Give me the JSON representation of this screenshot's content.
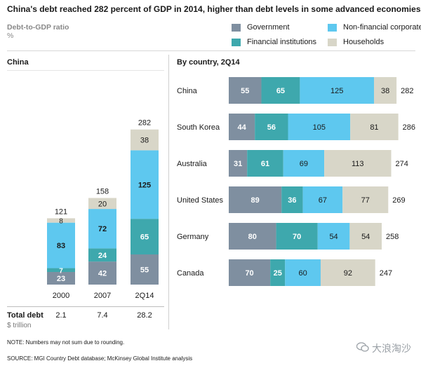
{
  "title": "China's debt reached 282 percent of GDP in 2014, higher than debt levels in some advanced economies",
  "ratio_label": "Debt-to-GDP ratio",
  "ratio_unit": "%",
  "colors": {
    "government": "#7f8fa0",
    "financial": "#3ea8ad",
    "nonfinancial": "#5ec8ef",
    "households": "#d8d6c8"
  },
  "legend": [
    {
      "key": "government",
      "label": "Government"
    },
    {
      "key": "nonfinancial",
      "label": "Non-financial corporate"
    },
    {
      "key": "financial",
      "label": "Financial institutions"
    },
    {
      "key": "households",
      "label": "Households"
    }
  ],
  "chart_data": [
    {
      "type": "bar",
      "stacked": true,
      "orientation": "vertical",
      "title": "China",
      "categories": [
        "2000",
        "2007",
        "2Q14"
      ],
      "series": [
        {
          "key": "government",
          "name": "Government",
          "values": [
            23,
            42,
            55
          ]
        },
        {
          "key": "financial",
          "name": "Financial institutions",
          "values": [
            7,
            24,
            65
          ]
        },
        {
          "key": "nonfinancial",
          "name": "Non-financial corporate",
          "values": [
            83,
            72,
            125
          ]
        },
        {
          "key": "households",
          "name": "Households",
          "values": [
            8,
            20,
            38
          ]
        }
      ],
      "totals": [
        121,
        158,
        282
      ],
      "total_debt_label": "Total debt",
      "total_debt_unit": "$ trillion",
      "total_debt": [
        "2.1",
        "7.4",
        "28.2"
      ]
    },
    {
      "type": "bar",
      "stacked": true,
      "orientation": "horizontal",
      "title": "By country, 2Q14",
      "categories": [
        "China",
        "South Korea",
        "Australia",
        "United States",
        "Germany",
        "Canada"
      ],
      "series": [
        {
          "key": "government",
          "name": "Government",
          "values": [
            55,
            44,
            31,
            89,
            80,
            70
          ]
        },
        {
          "key": "financial",
          "name": "Financial institutions",
          "values": [
            65,
            56,
            61,
            36,
            70,
            25
          ]
        },
        {
          "key": "nonfinancial",
          "name": "Non-financial corporate",
          "values": [
            125,
            105,
            69,
            67,
            54,
            60
          ]
        },
        {
          "key": "households",
          "name": "Households",
          "values": [
            38,
            81,
            113,
            77,
            54,
            92
          ]
        }
      ],
      "totals": [
        282,
        286,
        274,
        269,
        258,
        247
      ]
    }
  ],
  "note": "NOTE: Numbers may not sum due to rounding.",
  "source": "SOURCE: MGI Country Debt database; McKinsey Global Institute analysis",
  "watermark": "大浪淘沙"
}
